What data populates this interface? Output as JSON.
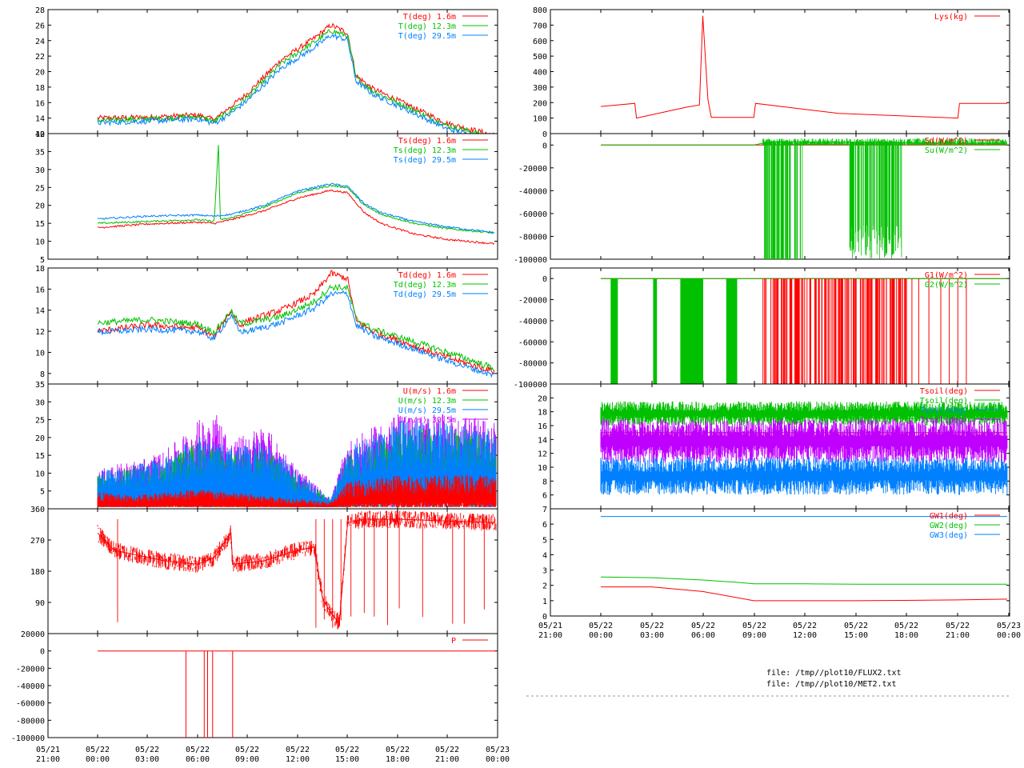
{
  "file_notes": [
    "file: /tmp//plot10/FLUX2.txt",
    "file: /tmp//plot10/MET2.txt"
  ],
  "x_tick_labels": [
    [
      "05/21",
      "21:00"
    ],
    [
      "05/22",
      "00:00"
    ],
    [
      "05/22",
      "03:00"
    ],
    [
      "05/22",
      "06:00"
    ],
    [
      "05/22",
      "09:00"
    ],
    [
      "05/22",
      "12:00"
    ],
    [
      "05/22",
      "15:00"
    ],
    [
      "05/22",
      "18:00"
    ],
    [
      "05/22",
      "21:00"
    ],
    [
      "05/23",
      "00:00"
    ]
  ],
  "chart_data": [
    {
      "id": "air-temperature",
      "type": "line",
      "ylim": [
        12,
        28
      ],
      "yticks": [
        "12",
        "14",
        "16",
        "18",
        "20",
        "22",
        "24",
        "26",
        "28"
      ],
      "series": [
        {
          "name": "T(deg)  1.6m",
          "color": "#ff0000",
          "x_hours": [
            0,
            3,
            6,
            7,
            8,
            9,
            11,
            13,
            14,
            15,
            15.5,
            16.5,
            18,
            21,
            23.8
          ],
          "values": [
            14.0,
            14.1,
            14.4,
            13.8,
            15.5,
            17.2,
            21.5,
            24.3,
            26.0,
            25.0,
            19.5,
            17.8,
            16.3,
            13.3,
            11.8
          ]
        },
        {
          "name": "T(deg) 12.3m",
          "color": "#00c000",
          "x_hours": [
            0,
            3,
            6,
            7,
            8,
            9,
            11,
            13,
            14,
            15,
            15.5,
            16.5,
            18,
            21,
            23.8
          ],
          "values": [
            13.7,
            13.9,
            14.2,
            13.6,
            15.0,
            16.7,
            21.0,
            23.8,
            25.3,
            24.6,
            19.2,
            17.5,
            16.0,
            13.0,
            11.5
          ]
        },
        {
          "name": "T(deg) 29.5m",
          "color": "#0080ff",
          "x_hours": [
            0,
            3,
            6,
            7,
            8,
            9,
            11,
            13,
            14,
            15,
            15.5,
            16.5,
            18,
            21,
            23.8
          ],
          "values": [
            13.4,
            13.6,
            13.9,
            13.3,
            14.6,
            16.3,
            20.4,
            23.1,
            24.7,
            24.1,
            18.8,
            17.1,
            15.6,
            12.6,
            11.1
          ]
        }
      ]
    },
    {
      "id": "surface-temperature",
      "type": "line",
      "ylim": [
        5,
        40
      ],
      "yticks": [
        "5",
        "10",
        "15",
        "20",
        "25",
        "30",
        "35",
        "40"
      ],
      "series": [
        {
          "name": "Ts(deg)  1.6m",
          "color": "#ff0000",
          "x_hours": [
            0,
            3,
            6,
            7,
            8,
            10,
            12,
            14,
            15,
            16,
            17,
            19,
            21,
            23.8
          ],
          "values": [
            13.8,
            14.8,
            15.3,
            15.0,
            16.0,
            18.5,
            22.0,
            24.2,
            23.5,
            18.0,
            15.0,
            12.0,
            10.5,
            9.3
          ]
        },
        {
          "name": "Ts(deg) 12.3m",
          "color": "#00c000",
          "x_hours": [
            0,
            3,
            6,
            7,
            7.25,
            7.35,
            8,
            10,
            12,
            14,
            15,
            16,
            17,
            19,
            21,
            23.8
          ],
          "values": [
            15.0,
            15.5,
            16.0,
            15.5,
            37.5,
            16.0,
            16.5,
            19.5,
            23.5,
            25.5,
            25.0,
            20.0,
            17.5,
            15.0,
            13.5,
            12.3
          ]
        },
        {
          "name": "Ts(deg) 29.5m",
          "color": "#0080ff",
          "x_hours": [
            0,
            3,
            6,
            7,
            8,
            10,
            12,
            14,
            15,
            16,
            17,
            19,
            21,
            23.8
          ],
          "values": [
            16.2,
            17.0,
            17.3,
            17.0,
            17.5,
            20.0,
            24.0,
            26.0,
            25.3,
            20.5,
            18.0,
            15.5,
            14.0,
            12.4
          ]
        }
      ]
    },
    {
      "id": "dewpoint-temperature",
      "type": "line",
      "ylim": [
        7,
        18
      ],
      "yticks": [
        "8",
        "10",
        "12",
        "14",
        "16",
        "18"
      ],
      "series": [
        {
          "name": "Td(deg)  1.6m",
          "color": "#ff0000",
          "x_hours": [
            0,
            3,
            6,
            7,
            8,
            8.5,
            9,
            11,
            13,
            14,
            15,
            15.5,
            16.5,
            19,
            21,
            23.8
          ],
          "values": [
            12.0,
            12.6,
            12.3,
            11.5,
            14.0,
            12.5,
            13.0,
            14.0,
            15.5,
            17.5,
            17.0,
            13.0,
            12.0,
            10.6,
            9.5,
            8.2
          ]
        },
        {
          "name": "Td(deg) 12.3m",
          "color": "#00c000",
          "x_hours": [
            0,
            3,
            6,
            7,
            8,
            8.5,
            9,
            11,
            13,
            14,
            15,
            15.5,
            16.5,
            19,
            21,
            23.8
          ],
          "values": [
            12.8,
            13.1,
            12.7,
            11.9,
            13.9,
            12.8,
            12.8,
            13.4,
            14.8,
            16.2,
            16.1,
            13.2,
            12.2,
            11.0,
            10.0,
            8.5
          ]
        },
        {
          "name": "Td(deg) 29.5m",
          "color": "#0080ff",
          "x_hours": [
            0,
            3,
            6,
            7,
            8,
            8.5,
            9,
            11,
            13,
            14,
            15,
            15.5,
            16.5,
            19,
            21,
            23.8
          ],
          "values": [
            11.9,
            12.2,
            12.0,
            11.3,
            13.5,
            12.0,
            12.0,
            12.8,
            14.2,
            15.5,
            15.6,
            12.6,
            11.6,
            10.3,
            9.2,
            7.8
          ]
        }
      ]
    },
    {
      "id": "wind-speed",
      "type": "line",
      "ylim": [
        0,
        35
      ],
      "yticks": [
        "5",
        "10",
        "15",
        "20",
        "25",
        "30",
        "35"
      ],
      "series": [
        {
          "name": "U(m/s)  1.6m",
          "color": "#ff0000",
          "x_hours": [
            0,
            2,
            4,
            6,
            8,
            10,
            12,
            14,
            15,
            18,
            21,
            23.8
          ],
          "values": [
            2.5,
            2.0,
            2.5,
            3.0,
            2.5,
            2.0,
            1.5,
            1.0,
            4.0,
            5.0,
            5.0,
            5.0
          ]
        },
        {
          "name": "U(m/s) 12.3m",
          "color": "#00c000",
          "x_hours": [
            0,
            2,
            4,
            6,
            8,
            10,
            12,
            14,
            15,
            18,
            21,
            23.8
          ],
          "values": [
            5.0,
            6.0,
            7.0,
            10.0,
            8.0,
            9.0,
            5.0,
            1.5,
            8.0,
            12.0,
            12.0,
            11.0
          ]
        },
        {
          "name": "U(m/s) 29.5m",
          "color": "#0080ff",
          "x_hours": [
            0,
            2,
            4,
            6,
            8,
            10,
            12,
            14,
            15,
            18,
            21,
            23.8
          ],
          "values": [
            5.5,
            6.5,
            7.5,
            11.0,
            9.0,
            10.0,
            5.5,
            1.5,
            9.0,
            13.0,
            13.0,
            12.0
          ]
        },
        {
          "name": "U(m/s) 30.5m",
          "color": "#c000ff",
          "x_hours": [
            0,
            2,
            4,
            6,
            7,
            8,
            10,
            12,
            14,
            15,
            18,
            21,
            23.8
          ],
          "values": [
            6.0,
            7.0,
            8.5,
            13.0,
            15.0,
            10.0,
            12.5,
            6.0,
            1.5,
            10.0,
            14.0,
            14.0,
            13.0
          ]
        }
      ]
    },
    {
      "id": "wind-direction",
      "type": "line",
      "ylim": [
        0,
        360
      ],
      "yticks": [
        "90",
        "180",
        "270",
        "360"
      ],
      "series": [
        {
          "name": "",
          "color": "#ff0000",
          "x_hours": [
            0,
            1,
            2,
            4,
            6,
            7,
            8,
            8.1,
            10,
            12,
            13,
            13.5,
            14,
            14.5,
            15,
            16,
            18,
            21,
            23.8
          ],
          "values": [
            290,
            240,
            230,
            210,
            200,
            220,
            290,
            200,
            210,
            240,
            250,
            100,
            60,
            30,
            320,
            330,
            330,
            325,
            320
          ]
        }
      ]
    },
    {
      "id": "pressure",
      "type": "line",
      "ylim": [
        -100000,
        20000
      ],
      "yticks": [
        "-100000",
        "-80000",
        "-60000",
        "-40000",
        "-20000",
        "0",
        "20000"
      ],
      "series": [
        {
          "name": "P",
          "color": "#ff0000",
          "x_hours": [
            0,
            23.9
          ],
          "values": [
            0,
            0
          ]
        }
      ]
    },
    {
      "id": "lysimeter",
      "type": "line",
      "ylim": [
        0,
        800
      ],
      "yticks": [
        "0",
        "100",
        "200",
        "300",
        "400",
        "500",
        "600",
        "700",
        "800"
      ],
      "series": [
        {
          "name": "Lys(kg)",
          "color": "#ff0000",
          "x_hours": [
            0,
            2,
            2.1,
            5,
            5.8,
            6.0,
            6.3,
            6.5,
            9,
            9.1,
            14,
            21,
            21.1,
            23.9
          ],
          "values": [
            175,
            195,
            100,
            170,
            185,
            760,
            220,
            105,
            105,
            195,
            130,
            100,
            195,
            195
          ]
        }
      ]
    },
    {
      "id": "radiation",
      "type": "line",
      "ylim": [
        -100000,
        10000
      ],
      "yticks": [
        "-100000",
        "-80000",
        "-60000",
        "-40000",
        "-20000",
        "0"
      ],
      "series": [
        {
          "name": "Sd(W/m^2)",
          "color": "#ff0000",
          "x_hours": [
            0,
            23.9
          ],
          "values": [
            0,
            0
          ]
        },
        {
          "name": "Su(W/m^2)",
          "color": "#00c000",
          "x_hours": [
            0,
            9,
            10,
            23.9
          ],
          "values": [
            0,
            0,
            3000,
            1000
          ]
        }
      ]
    },
    {
      "id": "ground-flux",
      "type": "line",
      "ylim": [
        -100000,
        10000
      ],
      "yticks": [
        "-100000",
        "-80000",
        "-60000",
        "-40000",
        "-20000",
        "0"
      ],
      "series": [
        {
          "name": "G1(W/m^2)",
          "color": "#ff0000",
          "x_hours": [
            0,
            23.9
          ],
          "values": [
            0,
            0
          ]
        },
        {
          "name": "G2(W/m^2)",
          "color": "#00c000",
          "x_hours": [
            0,
            23.9
          ],
          "values": [
            0,
            0
          ]
        }
      ]
    },
    {
      "id": "soil-temperature",
      "type": "line",
      "ylim": [
        4,
        22
      ],
      "yticks": [
        "6",
        "8",
        "10",
        "12",
        "14",
        "16",
        "18",
        "20"
      ],
      "series": [
        {
          "name": "Tsoil(deg)",
          "color": "#ff0000",
          "x_hours": [
            0,
            23.9
          ],
          "values": [
            15,
            15
          ]
        },
        {
          "name": "Tsoil(deg)",
          "color": "#00c000",
          "x_hours": [
            0,
            6,
            12,
            18,
            23.9
          ],
          "values": [
            17.0,
            17.5,
            17.2,
            17.0,
            17.2
          ]
        },
        {
          "name": "Tsoil(deg)",
          "color": "#0080ff",
          "x_hours": [
            0,
            6,
            12,
            18,
            23.9
          ],
          "values": [
            8.5,
            9.0,
            9.0,
            8.8,
            8.5
          ]
        },
        {
          "name": "Tsoil(deg)",
          "color": "#c000ff",
          "x_hours": [
            0,
            6,
            12,
            18,
            23.9
          ],
          "values": [
            13.5,
            14.5,
            14.3,
            14.0,
            14.0
          ]
        }
      ]
    },
    {
      "id": "ground-water",
      "type": "line",
      "ylim": [
        0,
        7
      ],
      "yticks": [
        "0",
        "1",
        "2",
        "3",
        "4",
        "5",
        "6",
        "7"
      ],
      "series": [
        {
          "name": "GW1(deg)",
          "color": "#ff0000",
          "x_hours": [
            0,
            3,
            6,
            8,
            9,
            12,
            15,
            21,
            23.9
          ],
          "values": [
            1.9,
            1.9,
            1.6,
            1.2,
            1.0,
            1.0,
            1.0,
            1.05,
            1.1
          ]
        },
        {
          "name": "GW2(deg)",
          "color": "#00c000",
          "x_hours": [
            0,
            3,
            6,
            8,
            9,
            12,
            15,
            21,
            23.9
          ],
          "values": [
            2.55,
            2.5,
            2.35,
            2.2,
            2.1,
            2.1,
            2.08,
            2.08,
            2.08
          ]
        },
        {
          "name": "GW3(deg)",
          "color": "#0080ff",
          "x_hours": [
            0,
            23.9
          ],
          "values": [
            6.5,
            6.5
          ]
        }
      ]
    }
  ]
}
